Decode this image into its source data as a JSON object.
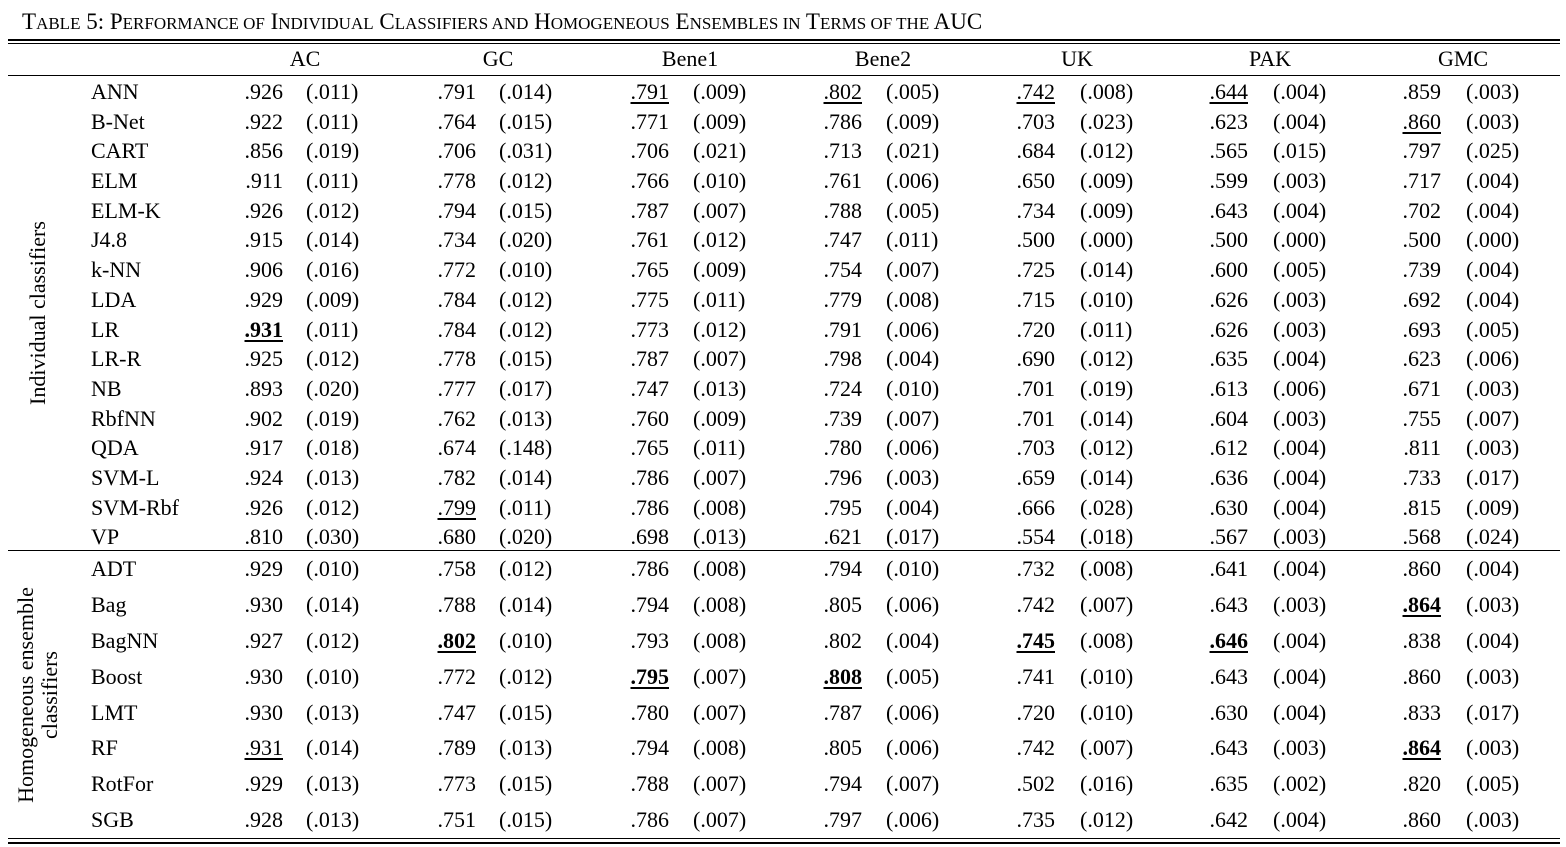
{
  "caption": "TABLE 5: PERFORMANCE OF INDIVIDUAL CLASSIFIERS AND HOMOGENEOUS ENSEMBLES IN TERMS OF THE AUC",
  "caption_parts": [
    {
      "t": "T",
      "sc": false
    },
    {
      "t": "ABLE",
      "sc": true
    },
    {
      "t": " 5: P",
      "sc": false
    },
    {
      "t": "ERFORMANCE OF",
      "sc": true
    },
    {
      "t": " I",
      "sc": false
    },
    {
      "t": "NDIVIDUAL",
      "sc": true
    },
    {
      "t": " C",
      "sc": false
    },
    {
      "t": "LASSIFIERS AND",
      "sc": true
    },
    {
      "t": " H",
      "sc": false
    },
    {
      "t": "OMOGENEOUS",
      "sc": true
    },
    {
      "t": " E",
      "sc": false
    },
    {
      "t": "NSEMBLES IN",
      "sc": true
    },
    {
      "t": " T",
      "sc": false
    },
    {
      "t": "ERMS OF THE",
      "sc": true
    },
    {
      "t": " AUC",
      "sc": false
    }
  ],
  "columns": [
    "AC",
    "GC",
    "Bene1",
    "Bene2",
    "UK",
    "PAK",
    "GMC"
  ],
  "groups": [
    {
      "label_lines": [
        "Individual classifiers"
      ],
      "rows": [
        {
          "name": "ANN",
          "cells": [
            [
              ".926",
              "(.011)",
              ""
            ],
            [
              ".791",
              "(.014)",
              ""
            ],
            [
              ".791",
              "(.009)",
              "u"
            ],
            [
              ".802",
              "(.005)",
              "u"
            ],
            [
              ".742",
              "(.008)",
              "u"
            ],
            [
              ".644",
              "(.004)",
              "u"
            ],
            [
              ".859",
              "(.003)",
              ""
            ]
          ]
        },
        {
          "name": "B-Net",
          "cells": [
            [
              ".922",
              "(.011)",
              ""
            ],
            [
              ".764",
              "(.015)",
              ""
            ],
            [
              ".771",
              "(.009)",
              ""
            ],
            [
              ".786",
              "(.009)",
              ""
            ],
            [
              ".703",
              "(.023)",
              ""
            ],
            [
              ".623",
              "(.004)",
              ""
            ],
            [
              ".860",
              "(.003)",
              "u"
            ]
          ]
        },
        {
          "name": "CART",
          "cells": [
            [
              ".856",
              "(.019)",
              ""
            ],
            [
              ".706",
              "(.031)",
              ""
            ],
            [
              ".706",
              "(.021)",
              ""
            ],
            [
              ".713",
              "(.021)",
              ""
            ],
            [
              ".684",
              "(.012)",
              ""
            ],
            [
              ".565",
              "(.015)",
              ""
            ],
            [
              ".797",
              "(.025)",
              ""
            ]
          ]
        },
        {
          "name": "ELM",
          "cells": [
            [
              ".911",
              "(.011)",
              ""
            ],
            [
              ".778",
              "(.012)",
              ""
            ],
            [
              ".766",
              "(.010)",
              ""
            ],
            [
              ".761",
              "(.006)",
              ""
            ],
            [
              ".650",
              "(.009)",
              ""
            ],
            [
              ".599",
              "(.003)",
              ""
            ],
            [
              ".717",
              "(.004)",
              ""
            ]
          ]
        },
        {
          "name": "ELM-K",
          "cells": [
            [
              ".926",
              "(.012)",
              ""
            ],
            [
              ".794",
              "(.015)",
              ""
            ],
            [
              ".787",
              "(.007)",
              ""
            ],
            [
              ".788",
              "(.005)",
              ""
            ],
            [
              ".734",
              "(.009)",
              ""
            ],
            [
              ".643",
              "(.004)",
              ""
            ],
            [
              ".702",
              "(.004)",
              ""
            ]
          ]
        },
        {
          "name": "J4.8",
          "cells": [
            [
              ".915",
              "(.014)",
              ""
            ],
            [
              ".734",
              "(.020)",
              ""
            ],
            [
              ".761",
              "(.012)",
              ""
            ],
            [
              ".747",
              "(.011)",
              ""
            ],
            [
              ".500",
              "(.000)",
              ""
            ],
            [
              ".500",
              "(.000)",
              ""
            ],
            [
              ".500",
              "(.000)",
              ""
            ]
          ]
        },
        {
          "name": "k-NN",
          "cells": [
            [
              ".906",
              "(.016)",
              ""
            ],
            [
              ".772",
              "(.010)",
              ""
            ],
            [
              ".765",
              "(.009)",
              ""
            ],
            [
              ".754",
              "(.007)",
              ""
            ],
            [
              ".725",
              "(.014)",
              ""
            ],
            [
              ".600",
              "(.005)",
              ""
            ],
            [
              ".739",
              "(.004)",
              ""
            ]
          ]
        },
        {
          "name": "LDA",
          "cells": [
            [
              ".929",
              "(.009)",
              ""
            ],
            [
              ".784",
              "(.012)",
              ""
            ],
            [
              ".775",
              "(.011)",
              ""
            ],
            [
              ".779",
              "(.008)",
              ""
            ],
            [
              ".715",
              "(.010)",
              ""
            ],
            [
              ".626",
              "(.003)",
              ""
            ],
            [
              ".692",
              "(.004)",
              ""
            ]
          ]
        },
        {
          "name": "LR",
          "cells": [
            [
              ".931",
              "(.011)",
              "b"
            ],
            [
              ".784",
              "(.012)",
              ""
            ],
            [
              ".773",
              "(.012)",
              ""
            ],
            [
              ".791",
              "(.006)",
              ""
            ],
            [
              ".720",
              "(.011)",
              ""
            ],
            [
              ".626",
              "(.003)",
              ""
            ],
            [
              ".693",
              "(.005)",
              ""
            ]
          ]
        },
        {
          "name": "LR-R",
          "cells": [
            [
              ".925",
              "(.012)",
              ""
            ],
            [
              ".778",
              "(.015)",
              ""
            ],
            [
              ".787",
              "(.007)",
              ""
            ],
            [
              ".798",
              "(.004)",
              ""
            ],
            [
              ".690",
              "(.012)",
              ""
            ],
            [
              ".635",
              "(.004)",
              ""
            ],
            [
              ".623",
              "(.006)",
              ""
            ]
          ]
        },
        {
          "name": "NB",
          "cells": [
            [
              ".893",
              "(.020)",
              ""
            ],
            [
              ".777",
              "(.017)",
              ""
            ],
            [
              ".747",
              "(.013)",
              ""
            ],
            [
              ".724",
              "(.010)",
              ""
            ],
            [
              ".701",
              "(.019)",
              ""
            ],
            [
              ".613",
              "(.006)",
              ""
            ],
            [
              ".671",
              "(.003)",
              ""
            ]
          ]
        },
        {
          "name": "RbfNN",
          "cells": [
            [
              ".902",
              "(.019)",
              ""
            ],
            [
              ".762",
              "(.013)",
              ""
            ],
            [
              ".760",
              "(.009)",
              ""
            ],
            [
              ".739",
              "(.007)",
              ""
            ],
            [
              ".701",
              "(.014)",
              ""
            ],
            [
              ".604",
              "(.003)",
              ""
            ],
            [
              ".755",
              "(.007)",
              ""
            ]
          ]
        },
        {
          "name": "QDA",
          "cells": [
            [
              ".917",
              "(.018)",
              ""
            ],
            [
              ".674",
              "(.148)",
              ""
            ],
            [
              ".765",
              "(.011)",
              ""
            ],
            [
              ".780",
              "(.006)",
              ""
            ],
            [
              ".703",
              "(.012)",
              ""
            ],
            [
              ".612",
              "(.004)",
              ""
            ],
            [
              ".811",
              "(.003)",
              ""
            ]
          ]
        },
        {
          "name": "SVM-L",
          "cells": [
            [
              ".924",
              "(.013)",
              ""
            ],
            [
              ".782",
              "(.014)",
              ""
            ],
            [
              ".786",
              "(.007)",
              ""
            ],
            [
              ".796",
              "(.003)",
              ""
            ],
            [
              ".659",
              "(.014)",
              ""
            ],
            [
              ".636",
              "(.004)",
              ""
            ],
            [
              ".733",
              "(.017)",
              ""
            ]
          ]
        },
        {
          "name": "SVM-Rbf",
          "cells": [
            [
              ".926",
              "(.012)",
              ""
            ],
            [
              ".799",
              "(.011)",
              "u"
            ],
            [
              ".786",
              "(.008)",
              ""
            ],
            [
              ".795",
              "(.004)",
              ""
            ],
            [
              ".666",
              "(.028)",
              ""
            ],
            [
              ".630",
              "(.004)",
              ""
            ],
            [
              ".815",
              "(.009)",
              ""
            ]
          ]
        },
        {
          "name": "VP",
          "cells": [
            [
              ".810",
              "(.030)",
              ""
            ],
            [
              ".680",
              "(.020)",
              ""
            ],
            [
              ".698",
              "(.013)",
              ""
            ],
            [
              ".621",
              "(.017)",
              ""
            ],
            [
              ".554",
              "(.018)",
              ""
            ],
            [
              ".567",
              "(.003)",
              ""
            ],
            [
              ".568",
              "(.024)",
              ""
            ]
          ]
        }
      ]
    },
    {
      "label_lines": [
        "Homogeneous ensemble",
        "classifiers"
      ],
      "rows": [
        {
          "name": "ADT",
          "cells": [
            [
              ".929",
              "(.010)",
              ""
            ],
            [
              ".758",
              "(.012)",
              ""
            ],
            [
              ".786",
              "(.008)",
              ""
            ],
            [
              ".794",
              "(.010)",
              ""
            ],
            [
              ".732",
              "(.008)",
              ""
            ],
            [
              ".641",
              "(.004)",
              ""
            ],
            [
              ".860",
              "(.004)",
              ""
            ]
          ]
        },
        {
          "name": "Bag",
          "cells": [
            [
              ".930",
              "(.014)",
              ""
            ],
            [
              ".788",
              "(.014)",
              ""
            ],
            [
              ".794",
              "(.008)",
              ""
            ],
            [
              ".805",
              "(.006)",
              ""
            ],
            [
              ".742",
              "(.007)",
              ""
            ],
            [
              ".643",
              "(.003)",
              ""
            ],
            [
              ".864",
              "(.003)",
              "b"
            ]
          ]
        },
        {
          "name": "BagNN",
          "cells": [
            [
              ".927",
              "(.012)",
              ""
            ],
            [
              ".802",
              "(.010)",
              "b"
            ],
            [
              ".793",
              "(.008)",
              ""
            ],
            [
              ".802",
              "(.004)",
              ""
            ],
            [
              ".745",
              "(.008)",
              "b"
            ],
            [
              ".646",
              "(.004)",
              "b"
            ],
            [
              ".838",
              "(.004)",
              ""
            ]
          ]
        },
        {
          "name": "Boost",
          "cells": [
            [
              ".930",
              "(.010)",
              ""
            ],
            [
              ".772",
              "(.012)",
              ""
            ],
            [
              ".795",
              "(.007)",
              "b"
            ],
            [
              ".808",
              "(.005)",
              "b"
            ],
            [
              ".741",
              "(.010)",
              ""
            ],
            [
              ".643",
              "(.004)",
              ""
            ],
            [
              ".860",
              "(.003)",
              ""
            ]
          ]
        },
        {
          "name": "LMT",
          "cells": [
            [
              ".930",
              "(.013)",
              ""
            ],
            [
              ".747",
              "(.015)",
              ""
            ],
            [
              ".780",
              "(.007)",
              ""
            ],
            [
              ".787",
              "(.006)",
              ""
            ],
            [
              ".720",
              "(.010)",
              ""
            ],
            [
              ".630",
              "(.004)",
              ""
            ],
            [
              ".833",
              "(.017)",
              ""
            ]
          ]
        },
        {
          "name": "RF",
          "cells": [
            [
              ".931",
              "(.014)",
              "u"
            ],
            [
              ".789",
              "(.013)",
              ""
            ],
            [
              ".794",
              "(.008)",
              ""
            ],
            [
              ".805",
              "(.006)",
              ""
            ],
            [
              ".742",
              "(.007)",
              ""
            ],
            [
              ".643",
              "(.003)",
              ""
            ],
            [
              ".864",
              "(.003)",
              "b"
            ]
          ]
        },
        {
          "name": "RotFor",
          "cells": [
            [
              ".929",
              "(.013)",
              ""
            ],
            [
              ".773",
              "(.015)",
              ""
            ],
            [
              ".788",
              "(.007)",
              ""
            ],
            [
              ".794",
              "(.007)",
              ""
            ],
            [
              ".502",
              "(.016)",
              ""
            ],
            [
              ".635",
              "(.002)",
              ""
            ],
            [
              ".820",
              "(.005)",
              ""
            ]
          ]
        },
        {
          "name": "SGB",
          "cells": [
            [
              ".928",
              "(.013)",
              ""
            ],
            [
              ".751",
              "(.015)",
              ""
            ],
            [
              ".786",
              "(.007)",
              ""
            ],
            [
              ".797",
              "(.006)",
              ""
            ],
            [
              ".735",
              "(.012)",
              ""
            ],
            [
              ".642",
              "(.004)",
              ""
            ],
            [
              ".860",
              "(.003)",
              ""
            ]
          ]
        }
      ]
    }
  ]
}
